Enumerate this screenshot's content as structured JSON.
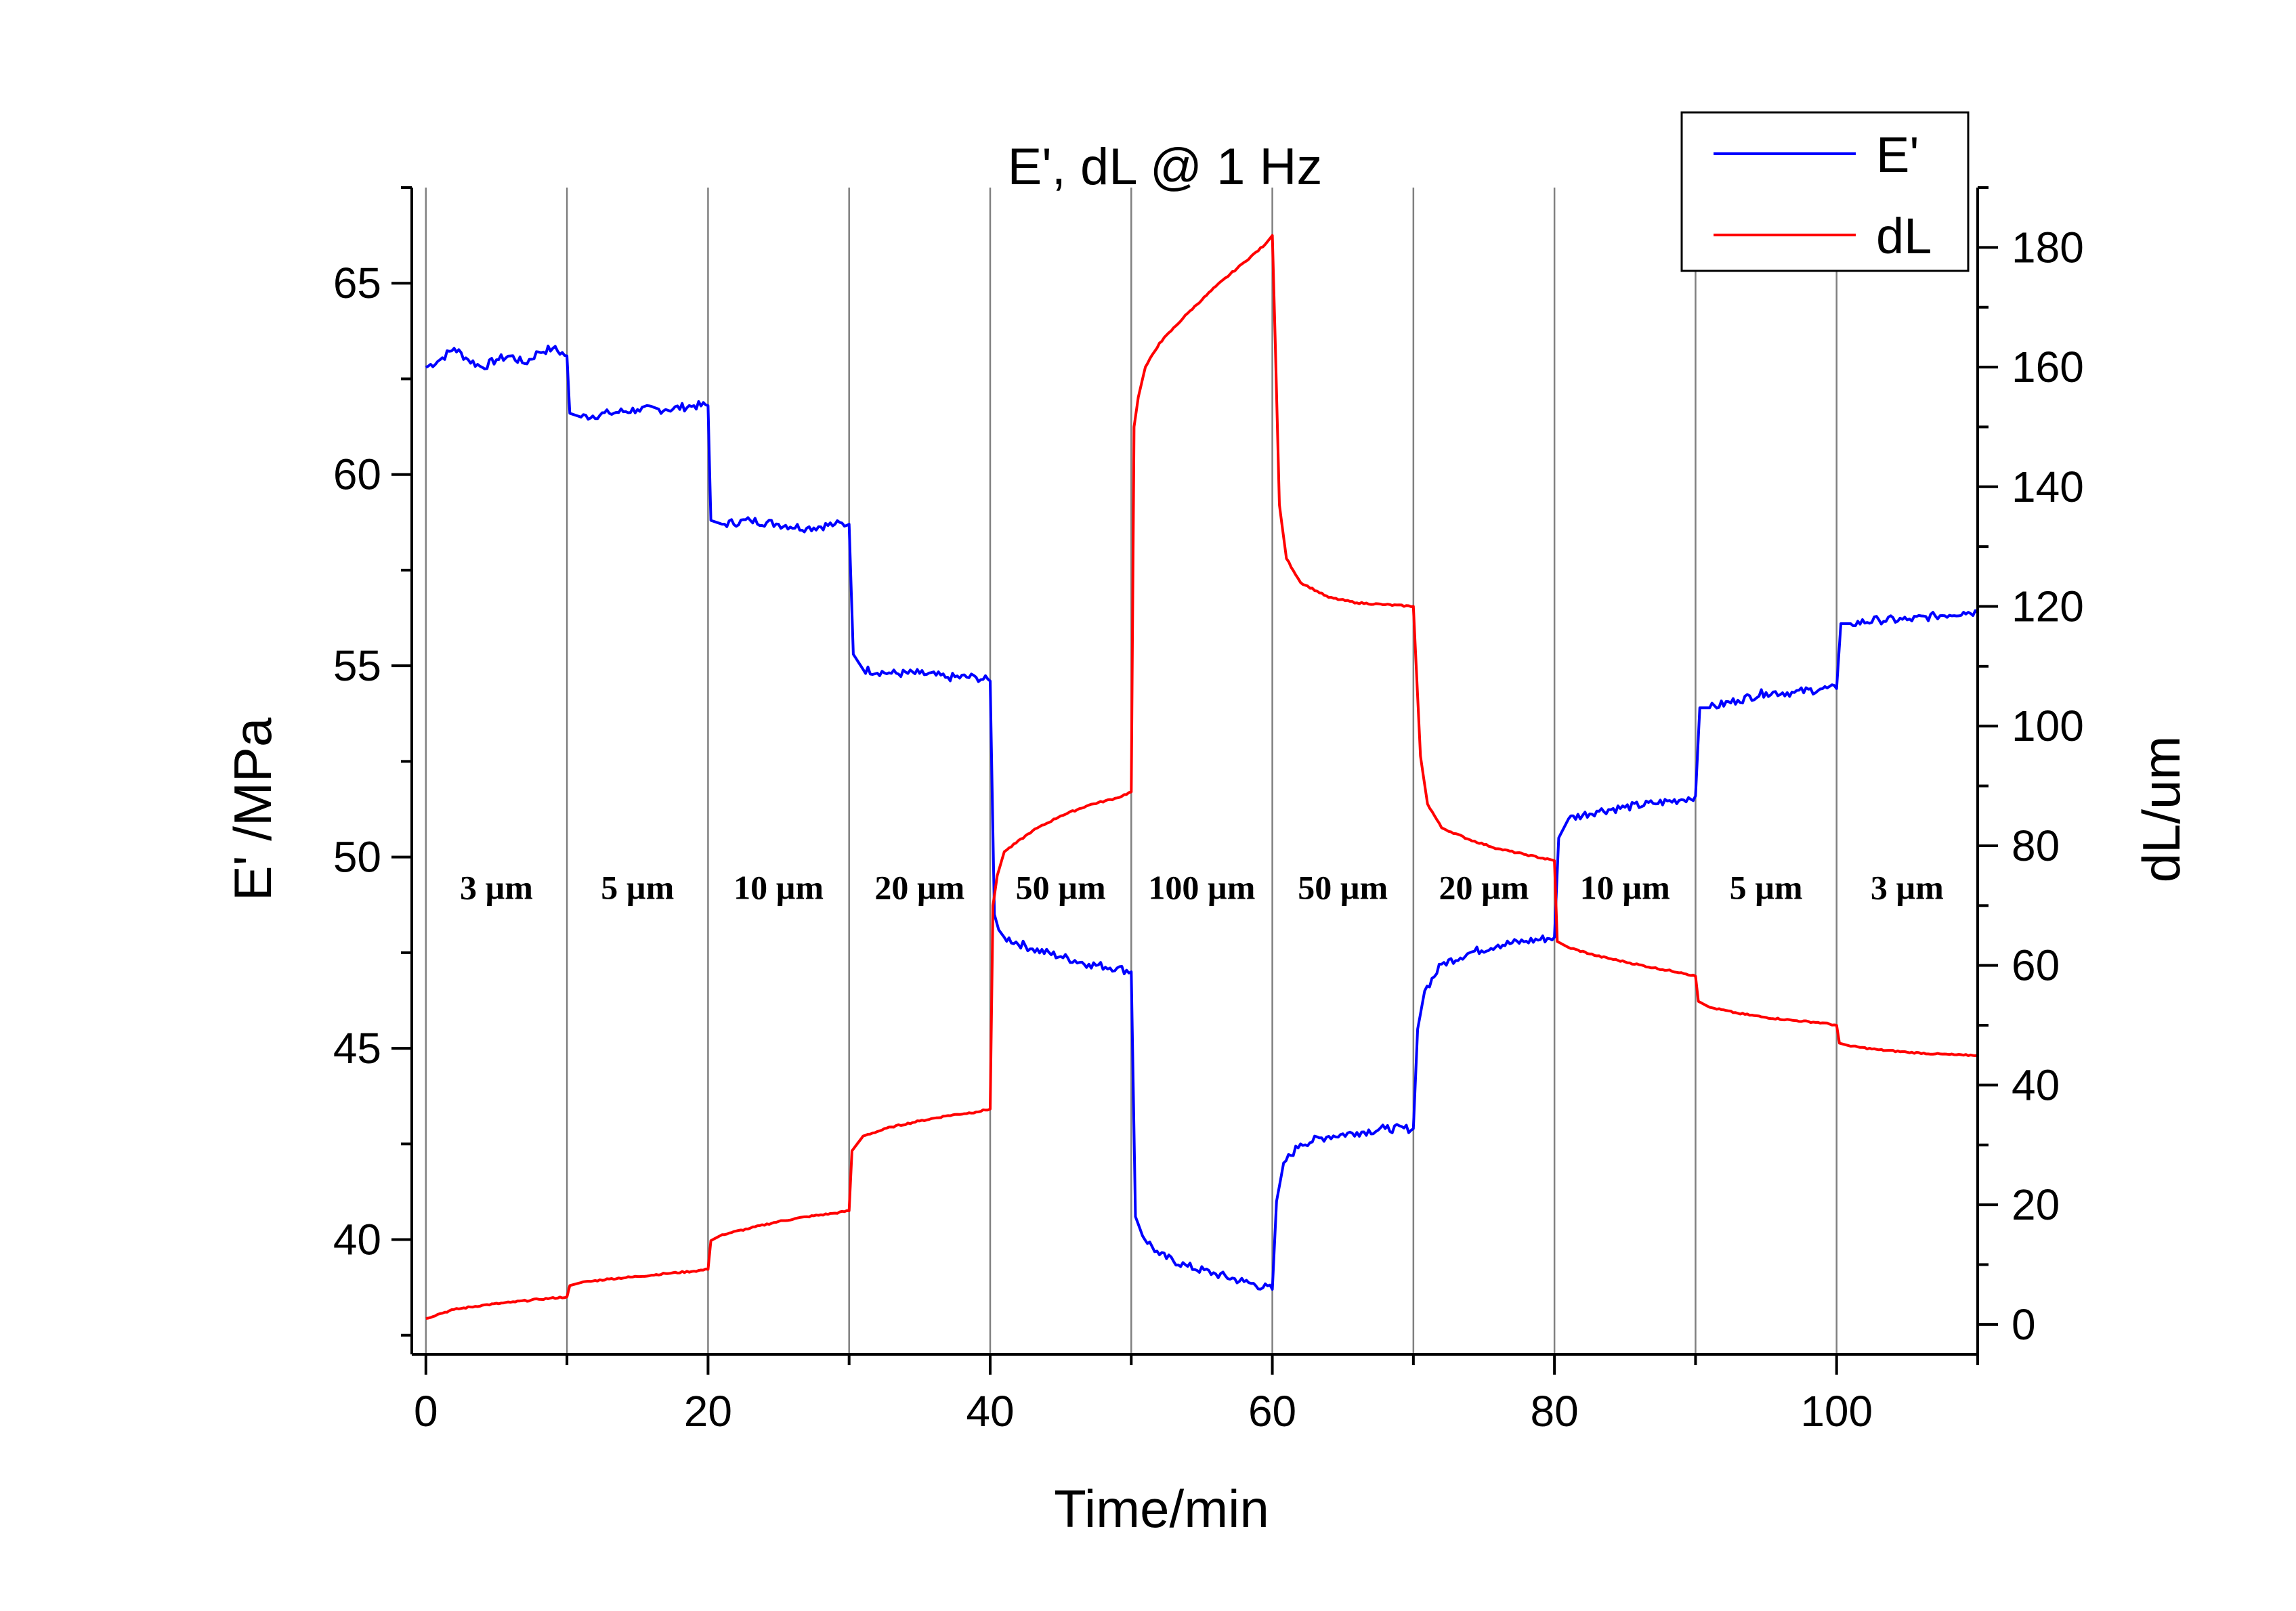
{
  "chart_data": {
    "type": "line",
    "title": "E', dL @ 1 Hz",
    "xlabel": "Time/min",
    "ylabel_left": "E' /MPa",
    "ylabel_right": "dL/um",
    "xlim": [
      -1,
      110
    ],
    "ylim_left": [
      37,
      67.5
    ],
    "ylim_right": [
      -5,
      190
    ],
    "xticks": [
      0,
      20,
      40,
      60,
      80,
      100
    ],
    "yticks_left": [
      40,
      45,
      50,
      55,
      60,
      65
    ],
    "yticks_right": [
      0,
      20,
      40,
      60,
      80,
      100,
      120,
      140,
      160,
      180
    ],
    "step_boundaries": [
      10,
      20,
      30,
      40,
      50,
      60,
      70,
      80,
      90,
      100
    ],
    "annotations": [
      {
        "x": 5,
        "label": "3 µm"
      },
      {
        "x": 15,
        "label": "5 µm"
      },
      {
        "x": 25,
        "label": "10 µm"
      },
      {
        "x": 35,
        "label": "20 µm"
      },
      {
        "x": 45,
        "label": "50 µm"
      },
      {
        "x": 55,
        "label": "100 µm"
      },
      {
        "x": 65,
        "label": "50 µm"
      },
      {
        "x": 75,
        "label": "20 µm"
      },
      {
        "x": 85,
        "label": "10 µm"
      },
      {
        "x": 95,
        "label": "5 µm"
      },
      {
        "x": 105,
        "label": "3 µm"
      }
    ],
    "annotation_y": 48.9,
    "legend": [
      {
        "name": "E'",
        "color": "#0000ff"
      },
      {
        "name": "dL",
        "color": "#ff0000"
      }
    ],
    "series": [
      {
        "name": "E'",
        "axis": "left",
        "color": "#0000ff",
        "x": [
          0,
          1,
          2,
          3,
          4,
          5,
          6,
          7,
          8,
          9,
          10,
          10.2,
          11,
          13,
          15,
          17,
          19,
          20,
          20.2,
          21,
          23,
          25,
          27,
          29,
          30,
          30.3,
          31,
          33,
          35,
          37,
          39,
          40,
          40.3,
          40.6,
          41,
          43,
          45,
          47,
          49,
          50,
          50.3,
          50.8,
          52,
          54,
          56,
          58,
          60,
          60.3,
          60.8,
          62,
          64,
          66,
          68,
          70,
          70.3,
          70.8,
          72,
          74,
          76,
          78,
          80,
          80.3,
          81,
          83,
          85,
          87,
          89,
          90,
          90.3,
          91,
          93,
          95,
          97,
          99,
          100,
          100.3,
          101,
          103,
          105,
          107,
          109,
          110
        ],
        "y": [
          62.8,
          63.0,
          63.3,
          63.0,
          62.8,
          63.0,
          63.1,
          62.9,
          63.2,
          63.3,
          63.1,
          61.6,
          61.5,
          61.6,
          61.7,
          61.7,
          61.8,
          61.8,
          58.8,
          58.7,
          58.8,
          58.7,
          58.6,
          58.7,
          58.7,
          55.3,
          54.9,
          54.8,
          54.8,
          54.7,
          54.7,
          54.6,
          48.5,
          48.1,
          47.9,
          47.6,
          47.4,
          47.2,
          47.1,
          47.0,
          40.6,
          40.1,
          39.6,
          39.3,
          39.1,
          38.9,
          38.7,
          41.0,
          42.0,
          42.5,
          42.7,
          42.8,
          42.9,
          42.9,
          45.5,
          46.5,
          47.2,
          47.5,
          47.7,
          47.8,
          47.9,
          50.5,
          51.0,
          51.2,
          51.3,
          51.4,
          51.5,
          51.6,
          53.9,
          53.9,
          54.1,
          54.3,
          54.3,
          54.4,
          54.4,
          56.1,
          56.1,
          56.2,
          56.2,
          56.3,
          56.4,
          56.4
        ]
      },
      {
        "name": "dL",
        "axis": "right",
        "color": "#ff0000",
        "x": [
          0,
          1,
          2,
          4,
          6,
          8,
          10,
          10.2,
          11,
          13,
          15,
          17,
          19,
          20,
          20.2,
          21,
          23,
          25,
          27,
          29,
          30,
          30.2,
          31,
          33,
          35,
          37,
          39,
          40,
          40.2,
          40.5,
          41,
          43,
          45,
          47,
          49,
          50,
          50.2,
          50.5,
          51,
          52,
          54,
          56,
          58,
          59.5,
          60,
          60.2,
          60.5,
          61,
          62,
          64,
          66,
          68,
          70,
          70.2,
          70.5,
          71,
          72,
          74,
          76,
          78,
          80,
          80.2,
          81,
          83,
          85,
          87,
          89,
          90,
          90.2,
          91,
          93,
          95,
          97,
          99,
          100,
          100.2,
          101,
          103,
          105,
          107,
          109,
          110
        ],
        "y": [
          1.0,
          1.8,
          2.5,
          3.2,
          3.7,
          4.2,
          4.6,
          6.5,
          7.0,
          7.6,
          8.0,
          8.5,
          8.9,
          9.2,
          14.0,
          15.0,
          16.1,
          17.2,
          18.0,
          18.6,
          19.0,
          29.0,
          31.5,
          33.0,
          34.0,
          34.9,
          35.5,
          36.0,
          70.0,
          75.0,
          79.0,
          82.5,
          85.0,
          86.8,
          88.0,
          89.0,
          150.0,
          155.0,
          160.0,
          164.0,
          169.0,
          173.5,
          177.5,
          180.5,
          182.0,
          165.0,
          137.0,
          128.0,
          124.0,
          121.5,
          120.6,
          120.3,
          120.0,
          110.0,
          95.0,
          87.0,
          83.0,
          81.0,
          79.5,
          78.5,
          77.5,
          64.0,
          63.0,
          61.6,
          60.6,
          59.6,
          58.8,
          58.2,
          54.0,
          53.0,
          52.0,
          51.3,
          50.8,
          50.4,
          50.0,
          47.0,
          46.5,
          45.9,
          45.5,
          45.2,
          45.0,
          45.0
        ]
      }
    ]
  }
}
